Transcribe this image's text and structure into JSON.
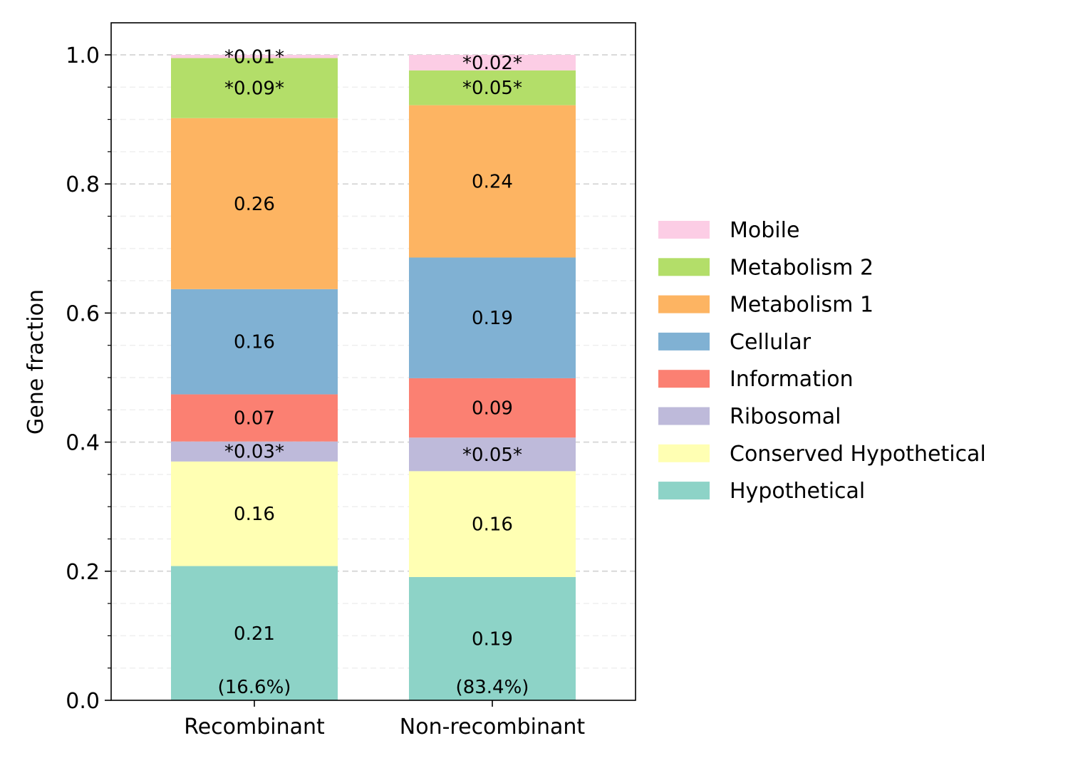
{
  "chart_data": {
    "type": "bar",
    "stacked": true,
    "categories": [
      "Recombinant",
      "Non-recombinant"
    ],
    "category_notes": [
      "(16.6%)",
      "(83.4%)"
    ],
    "ylabel": "Gene fraction",
    "xlabel": "",
    "ylim": [
      0,
      1.05
    ],
    "yticks": [
      "0.0",
      "0.2",
      "0.4",
      "0.6",
      "0.8",
      "1.0"
    ],
    "grid": "horizontal dashed",
    "legend_position": "right",
    "series": [
      {
        "name": "Hypothetical",
        "color": "#8dd3c7",
        "values": [
          0.208,
          0.191
        ],
        "labels": [
          "0.21",
          "0.19"
        ]
      },
      {
        "name": "Conserved Hypothetical",
        "color": "#ffffb3",
        "values": [
          0.162,
          0.164
        ],
        "labels": [
          "0.16",
          "0.16"
        ]
      },
      {
        "name": "Ribosomal",
        "color": "#bebada",
        "values": [
          0.031,
          0.052
        ],
        "labels": [
          "*0.03*",
          "*0.05*"
        ]
      },
      {
        "name": "Information",
        "color": "#fb8072",
        "values": [
          0.073,
          0.092
        ],
        "labels": [
          "0.07",
          "0.09"
        ]
      },
      {
        "name": "Cellular",
        "color": "#80b1d3",
        "values": [
          0.163,
          0.187
        ],
        "labels": [
          "0.16",
          "0.19"
        ]
      },
      {
        "name": "Metabolism 1",
        "color": "#fdb462",
        "values": [
          0.265,
          0.236
        ],
        "labels": [
          "0.26",
          "0.24"
        ]
      },
      {
        "name": "Metabolism 2",
        "color": "#b3de69",
        "values": [
          0.093,
          0.054
        ],
        "labels": [
          "*0.09*",
          "*0.05*"
        ]
      },
      {
        "name": "Mobile",
        "color": "#fccde5",
        "values": [
          0.005,
          0.024
        ],
        "labels": [
          "*0.01*",
          "*0.02*"
        ]
      }
    ]
  }
}
